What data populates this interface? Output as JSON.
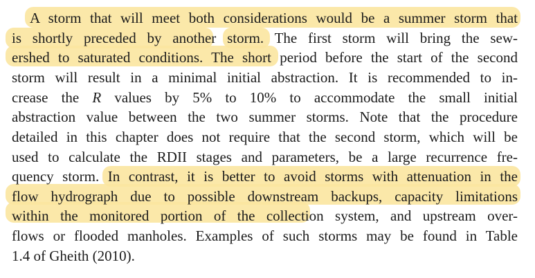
{
  "paragraph": {
    "lines": [
      "A storm that will meet both considerations would be a summer storm that",
      "is shortly preceded by another storm. The first storm will bring the sew-",
      "ershed to saturated conditions. The short period before the start of the second",
      "storm will result in a minimal initial abstraction. It is recommended to in-",
      "crease the R values by 5% to 10% to accommodate the small initial",
      "abstraction value between the two summer storms. Note that the procedure",
      "detailed in this chapter does not require that the second storm, which will be",
      "used to calculate the RDII stages and parameters, be a large recurrence fre-",
      "quency storm. In contrast, it is better to avoid storms with attenuation in the",
      "flow hydrograph due to possible downstream backups, capacity limitations",
      "within the monitored portion of the collection system, and upstream over-",
      "flows or flooded manholes. Examples of such storms may be found in Table",
      "1.4 of Gheith (2010)."
    ]
  },
  "highlight": {
    "color": "#fbe6a0"
  }
}
